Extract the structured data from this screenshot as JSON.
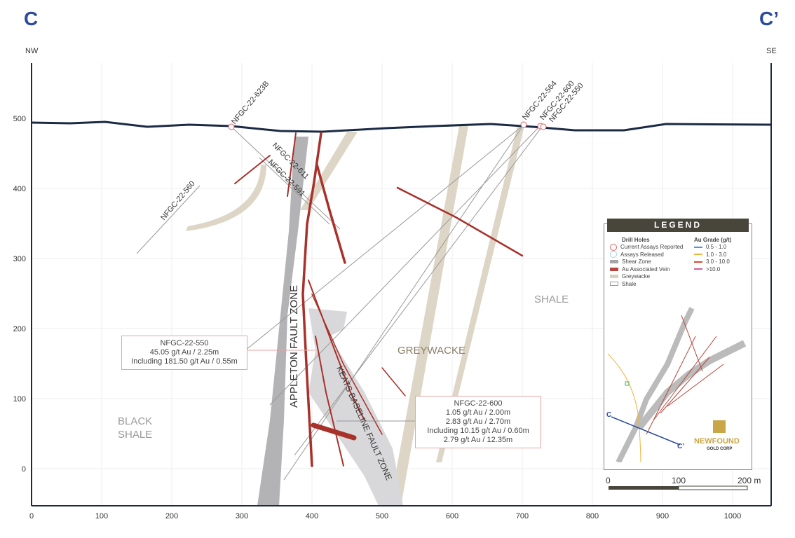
{
  "section": {
    "left_label": "C",
    "right_label": "C’",
    "left_dir": "NW",
    "right_dir": "SE"
  },
  "axes": {
    "x_ticks": [
      "0",
      "100",
      "200",
      "300",
      "400",
      "500",
      "600",
      "700",
      "800",
      "900",
      "1000"
    ],
    "y_ticks": [
      "500",
      "400",
      "300",
      "200",
      "100",
      "0"
    ]
  },
  "drill_holes": [
    "NFGC-22-623B",
    "NFGC-22-560",
    "NFGC-22-611",
    "NFGC-22-591",
    "NFGC-22-564",
    "NFGC-22-600",
    "NFGC-22-550"
  ],
  "units": {
    "appleton": "APPLETON FAULT ZONE",
    "keats": "KEATS BASELINE FAULT ZONE",
    "greywacke": "GREYWACKE",
    "shale": "SHALE",
    "black_shale_1": "BLACK",
    "black_shale_2": "SHALE"
  },
  "callouts": [
    {
      "lines": [
        "NFGC-22-550",
        "45.05 g/t Au / 2.25m",
        "Including 181.50 g/t Au / 0.55m"
      ]
    },
    {
      "lines": [
        "NFGC-22-600",
        "1.05 g/t Au / 2.00m",
        "2.83 g/t Au / 2.70m",
        "Including 10.15 g/t Au / 0.60m",
        "2.79 g/t Au / 12.35m"
      ]
    }
  ],
  "legend": {
    "title": "LEGEND",
    "drill_holes_title": "Drill Holes",
    "grade_title": "Au Grade (g/t)",
    "items": [
      {
        "label": "Current Assays Reported",
        "color": "#e06060"
      },
      {
        "label": "Assays Released",
        "color": "#9fd0ee"
      },
      {
        "label": "Shear Zone",
        "color": "#a5a5a8"
      },
      {
        "label": "Au Associated Vein",
        "color": "#b5483e"
      },
      {
        "label": "Greywacke",
        "color": "#d9d1bf"
      },
      {
        "label": "Shale",
        "color": "#ffffff"
      }
    ],
    "grades": [
      {
        "label": "0.5 - 1.0",
        "color": "#5b8fd6"
      },
      {
        "label": "1.0 - 3.0",
        "color": "#f0b43c"
      },
      {
        "label": "3.0 - 10.0",
        "color": "#d6492f"
      },
      {
        "label": ">10.0",
        "color": "#d45a9a"
      }
    ],
    "brand_1": "NEWFOUND",
    "brand_2": "GOLD CORP",
    "inset_c": "C",
    "inset_c2": "C’"
  },
  "scale": {
    "labels": [
      "0",
      "100",
      "200 m"
    ]
  }
}
